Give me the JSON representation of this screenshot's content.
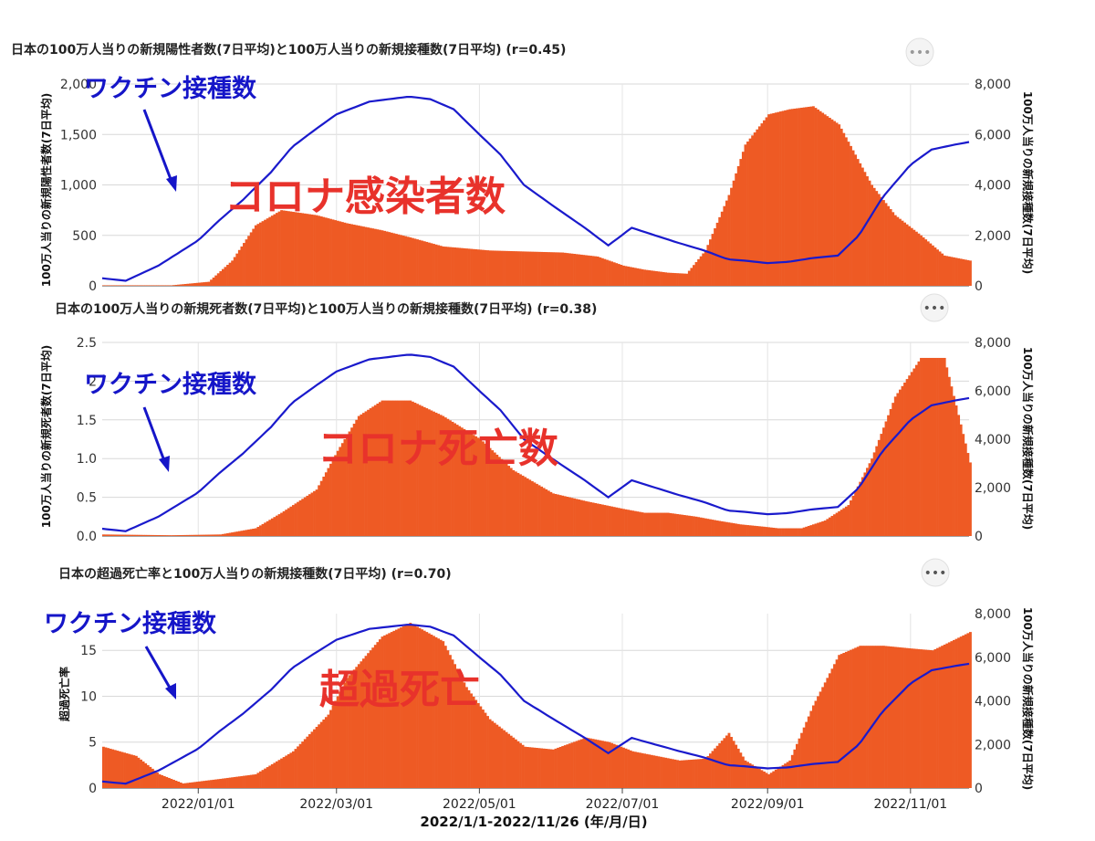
{
  "footer_label": "2022/1/1-2022/11/26 (年/月/日)",
  "menu_icon": "more-horizontal-icon",
  "charts": [
    {
      "title": "日本の100万人当りの新規陽性者数(7日平均)と100万人当りの新規接種数(7日平均) (r=0.45)",
      "left_label": "100万人当りの新規陽性者数(7日平均)",
      "right_label": "100万人当りの新規接種数(7日平均)",
      "left_ticks": [
        "0",
        "500",
        "1,000",
        "1,500",
        "2,000"
      ],
      "right_ticks": [
        "0",
        "2,000",
        "4,000",
        "6,000",
        "8,000"
      ],
      "x_ticks": [],
      "vaccine_label": "ワクチン接種数",
      "overlay_label": "コロナ感染者数"
    },
    {
      "title": "日本の100万人当りの新規死者数(7日平均)と100万人当りの新規接種数(7日平均) (r=0.38)",
      "left_label": "100万人当りの新規死者数(7日平均)",
      "right_label": "100万人当りの新規接種数(7日平均)",
      "left_ticks": [
        "0.0",
        "0.5",
        "1.0",
        "1.5",
        "2",
        "2.5"
      ],
      "right_ticks": [
        "0",
        "2,000",
        "4,000",
        "6,000",
        "8,000"
      ],
      "x_ticks": [],
      "vaccine_label": "ワクチン接種数",
      "overlay_label": "コロナ死亡数"
    },
    {
      "title": "日本の超過死亡率と100万人当りの新規接種数(7日平均) (r=0.70)",
      "left_label": "超過死亡率",
      "right_label": "100万人当りの新規接種数(7日平均)",
      "left_ticks": [
        "0",
        "5",
        "10",
        "15"
      ],
      "right_ticks": [
        "0",
        "2,000",
        "4,000",
        "6,000",
        "8,000"
      ],
      "x_ticks": [
        "2022/01/01",
        "2022/03/01",
        "2022/05/01",
        "2022/07/01",
        "2022/09/01",
        "2022/11/01"
      ],
      "vaccine_label": "ワクチン接種数",
      "overlay_label": "超過死亡"
    }
  ],
  "colors": {
    "bar": "#ee5a24",
    "line": "#1a1acc",
    "annotation": "#e8322b",
    "vaccine_text": "#1515c8"
  },
  "chart_data": [
    {
      "type": "bar",
      "title": "日本の100万人当りの新規陽性者数(7日平均)と100万人当りの新規接種数(7日平均) (r=0.45)",
      "x_range": [
        "2021-11-21",
        "2022-11-26"
      ],
      "ylabel": "100万人当りの新規陽性者数(7日平均)",
      "y2label": "100万人当りの新規接種数(7日平均)",
      "ylim": [
        0,
        2000
      ],
      "y2lim": [
        0,
        8000
      ],
      "bars": {
        "name": "新規陽性者数",
        "x": [
          "2021-11-21",
          "2021-12-20",
          "2022-01-05",
          "2022-01-15",
          "2022-01-25",
          "2022-02-05",
          "2022-02-20",
          "2022-03-05",
          "2022-03-20",
          "2022-04-01",
          "2022-04-15",
          "2022-04-25",
          "2022-05-05",
          "2022-05-20",
          "2022-06-05",
          "2022-06-20",
          "2022-07-01",
          "2022-07-10",
          "2022-07-20",
          "2022-07-28",
          "2022-08-05",
          "2022-08-15",
          "2022-08-22",
          "2022-09-01",
          "2022-09-10",
          "2022-09-20",
          "2022-10-01",
          "2022-10-15",
          "2022-10-25",
          "2022-11-05",
          "2022-11-15",
          "2022-11-26"
        ],
        "values": [
          5,
          5,
          40,
          250,
          600,
          750,
          700,
          620,
          550,
          480,
          390,
          370,
          350,
          340,
          330,
          290,
          200,
          160,
          130,
          120,
          350,
          900,
          1400,
          1700,
          1750,
          1780,
          1600,
          1000,
          700,
          500,
          300,
          250
        ]
      },
      "line": {
        "name": "新規接種数",
        "x": [
          "2021-11-21",
          "2021-12-01",
          "2021-12-15",
          "2022-01-01",
          "2022-01-10",
          "2022-01-20",
          "2022-02-01",
          "2022-02-10",
          "2022-02-20",
          "2022-03-01",
          "2022-03-15",
          "2022-04-01",
          "2022-04-10",
          "2022-04-20",
          "2022-05-01",
          "2022-05-10",
          "2022-05-20",
          "2022-06-01",
          "2022-06-15",
          "2022-06-25",
          "2022-07-05",
          "2022-07-15",
          "2022-07-25",
          "2022-08-05",
          "2022-08-15",
          "2022-08-22",
          "2022-09-01",
          "2022-09-10",
          "2022-09-20",
          "2022-10-01",
          "2022-10-10",
          "2022-10-20",
          "2022-11-01",
          "2022-11-10",
          "2022-11-20",
          "2022-11-26"
        ],
        "values": [
          300,
          200,
          800,
          1800,
          2600,
          3400,
          4500,
          5500,
          6200,
          6800,
          7300,
          7500,
          7400,
          7000,
          6000,
          5200,
          4000,
          3200,
          2300,
          1600,
          2300,
          2000,
          1700,
          1400,
          1050,
          1000,
          900,
          950,
          1100,
          1200,
          2000,
          3500,
          4800,
          5400,
          5600,
          5700
        ]
      }
    },
    {
      "type": "bar",
      "title": "日本の100万人当りの新規死者数(7日平均)と100万人当りの新規接種数(7日平均) (r=0.38)",
      "x_range": [
        "2021-11-21",
        "2022-11-26"
      ],
      "ylabel": "100万人当りの新規死者数(7日平均)",
      "y2label": "100万人当りの新規接種数(7日平均)",
      "ylim": [
        0,
        2.5
      ],
      "y2lim": [
        0,
        8000
      ],
      "bars": {
        "name": "新規死者数",
        "x": [
          "2021-11-21",
          "2021-12-20",
          "2022-01-10",
          "2022-01-25",
          "2022-02-05",
          "2022-02-20",
          "2022-03-01",
          "2022-03-10",
          "2022-03-20",
          "2022-04-01",
          "2022-04-15",
          "2022-05-01",
          "2022-05-15",
          "2022-06-01",
          "2022-06-15",
          "2022-07-01",
          "2022-07-10",
          "2022-07-20",
          "2022-08-01",
          "2022-08-10",
          "2022-08-20",
          "2022-08-30",
          "2022-09-05",
          "2022-09-15",
          "2022-09-25",
          "2022-10-05",
          "2022-10-15",
          "2022-10-25",
          "2022-11-05",
          "2022-11-15",
          "2022-11-26"
        ],
        "values": [
          0.02,
          0.01,
          0.02,
          0.1,
          0.3,
          0.6,
          1.1,
          1.55,
          1.75,
          1.75,
          1.55,
          1.25,
          0.85,
          0.55,
          0.45,
          0.35,
          0.3,
          0.3,
          0.25,
          0.2,
          0.15,
          0.12,
          0.1,
          0.1,
          0.2,
          0.4,
          1.0,
          1.8,
          2.3,
          2.3,
          0.95
        ]
      },
      "line": {
        "name": "新規接種数",
        "x": [
          "2021-11-21",
          "2021-12-01",
          "2021-12-15",
          "2022-01-01",
          "2022-01-10",
          "2022-01-20",
          "2022-02-01",
          "2022-02-10",
          "2022-02-20",
          "2022-03-01",
          "2022-03-15",
          "2022-04-01",
          "2022-04-10",
          "2022-04-20",
          "2022-05-01",
          "2022-05-10",
          "2022-05-20",
          "2022-06-01",
          "2022-06-15",
          "2022-06-25",
          "2022-07-05",
          "2022-07-15",
          "2022-07-25",
          "2022-08-05",
          "2022-08-15",
          "2022-08-22",
          "2022-09-01",
          "2022-09-10",
          "2022-09-20",
          "2022-10-01",
          "2022-10-10",
          "2022-10-20",
          "2022-11-01",
          "2022-11-10",
          "2022-11-20",
          "2022-11-26"
        ],
        "values": [
          300,
          200,
          800,
          1800,
          2600,
          3400,
          4500,
          5500,
          6200,
          6800,
          7300,
          7500,
          7400,
          7000,
          6000,
          5200,
          4000,
          3200,
          2300,
          1600,
          2300,
          2000,
          1700,
          1400,
          1050,
          1000,
          900,
          950,
          1100,
          1200,
          2000,
          3500,
          4800,
          5400,
          5600,
          5700
        ]
      }
    },
    {
      "type": "bar",
      "title": "日本の超過死亡率と100万人当りの新規接種数(7日平均) (r=0.70)",
      "xlabel": "2022/1/1-2022/11/26 (年/月/日)",
      "x_range": [
        "2021-11-21",
        "2022-11-26"
      ],
      "ylabel": "超過死亡率",
      "y2label": "100万人当りの新規接種数(7日平均)",
      "ylim": [
        0,
        19
      ],
      "y2lim": [
        0,
        8000
      ],
      "x_tick_labels": [
        "2022/01/01",
        "2022/03/01",
        "2022/05/01",
        "2022/07/01",
        "2022/09/01",
        "2022/11/01"
      ],
      "bars": {
        "name": "超過死亡率",
        "x": [
          "2021-11-21",
          "2021-12-05",
          "2021-12-15",
          "2021-12-25",
          "2022-01-10",
          "2022-01-25",
          "2022-02-10",
          "2022-02-25",
          "2022-03-05",
          "2022-03-20",
          "2022-04-01",
          "2022-04-15",
          "2022-04-25",
          "2022-05-05",
          "2022-05-20",
          "2022-06-01",
          "2022-06-15",
          "2022-06-25",
          "2022-07-05",
          "2022-07-15",
          "2022-07-25",
          "2022-08-05",
          "2022-08-15",
          "2022-08-22",
          "2022-09-01",
          "2022-09-10",
          "2022-09-20",
          "2022-10-01",
          "2022-10-10",
          "2022-10-20",
          "2022-11-01",
          "2022-11-10",
          "2022-11-26"
        ],
        "values": [
          4.5,
          3.5,
          1.5,
          0.5,
          1.0,
          1.5,
          4.0,
          8.0,
          12.0,
          16.5,
          18.0,
          16.0,
          11.0,
          7.5,
          4.5,
          4.2,
          5.5,
          5.0,
          4.0,
          3.5,
          3.0,
          3.2,
          6.0,
          3.0,
          1.5,
          3.0,
          9.0,
          14.5,
          15.5,
          15.5,
          15.2,
          15.0,
          17.0
        ]
      },
      "line": {
        "name": "新規接種数",
        "x": [
          "2021-11-21",
          "2021-12-01",
          "2021-12-15",
          "2022-01-01",
          "2022-01-10",
          "2022-01-20",
          "2022-02-01",
          "2022-02-10",
          "2022-02-20",
          "2022-03-01",
          "2022-03-15",
          "2022-04-01",
          "2022-04-10",
          "2022-04-20",
          "2022-05-01",
          "2022-05-10",
          "2022-05-20",
          "2022-06-01",
          "2022-06-15",
          "2022-06-25",
          "2022-07-05",
          "2022-07-15",
          "2022-07-25",
          "2022-08-05",
          "2022-08-15",
          "2022-08-22",
          "2022-09-01",
          "2022-09-10",
          "2022-09-20",
          "2022-10-01",
          "2022-10-10",
          "2022-10-20",
          "2022-11-01",
          "2022-11-10",
          "2022-11-20",
          "2022-11-26"
        ],
        "values": [
          300,
          200,
          800,
          1800,
          2600,
          3400,
          4500,
          5500,
          6200,
          6800,
          7300,
          7500,
          7400,
          7000,
          6000,
          5200,
          4000,
          3200,
          2300,
          1600,
          2300,
          2000,
          1700,
          1400,
          1050,
          1000,
          900,
          950,
          1100,
          1200,
          2000,
          3500,
          4800,
          5400,
          5600,
          5700
        ]
      }
    }
  ]
}
